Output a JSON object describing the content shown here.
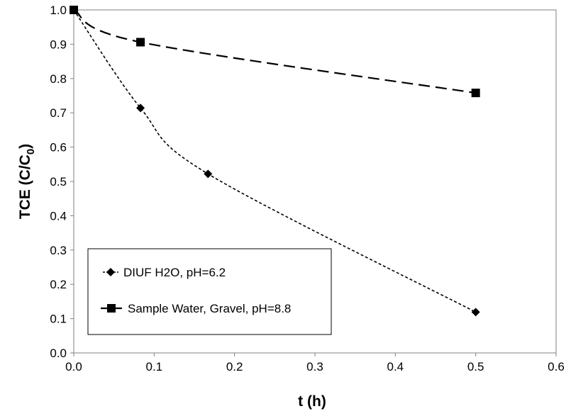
{
  "chart_data": {
    "type": "line",
    "title": "",
    "xlabel": "t (h)",
    "ylabel": {
      "prefix": "TCE (C/C",
      "subscript": "0",
      "suffix": ")"
    },
    "xlim": [
      0,
      0.6
    ],
    "ylim": [
      0,
      1.0
    ],
    "x_ticks": [
      "0.0",
      "0.1",
      "0.2",
      "0.3",
      "0.4",
      "0.5",
      "0.6"
    ],
    "y_ticks": [
      "0.0",
      "0.1",
      "0.2",
      "0.3",
      "0.4",
      "0.5",
      "0.6",
      "0.7",
      "0.8",
      "0.9",
      "1.0"
    ],
    "grid": false,
    "legend_position": "bottom-left",
    "series": [
      {
        "name": "DIUF H2O, pH=6.2",
        "marker": "diamond",
        "line_style": "short-dash",
        "smooth": true,
        "color": "#000000",
        "x": [
          0,
          0.083,
          0.167,
          0.5
        ],
        "y": [
          1.0,
          0.714,
          0.522,
          0.119
        ]
      },
      {
        "name": "Sample Water, Gravel, pH=8.8",
        "marker": "square",
        "line_style": "long-dash",
        "smooth": true,
        "color": "#000000",
        "x": [
          0,
          0.083,
          0.5
        ],
        "y": [
          1.0,
          0.906,
          0.758
        ]
      }
    ]
  }
}
